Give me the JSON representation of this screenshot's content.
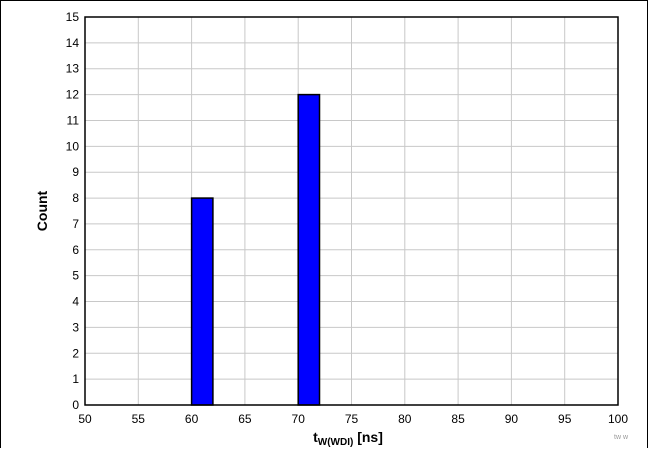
{
  "chart_data": {
    "type": "bar",
    "xlabel_main": "t",
    "xlabel_sub": "W(WDI)",
    "xlabel_unit": " [ns]",
    "ylabel": "Count",
    "xlim": [
      50,
      100
    ],
    "ylim": [
      0,
      15
    ],
    "x_ticks": [
      "50",
      "55",
      "60",
      "65",
      "70",
      "75",
      "80",
      "85",
      "90",
      "95",
      "100"
    ],
    "y_ticks": [
      "0",
      "1",
      "2",
      "3",
      "4",
      "5",
      "6",
      "7",
      "8",
      "9",
      "10",
      "11",
      "12",
      "13",
      "14",
      "15"
    ],
    "bars": [
      {
        "x_start": 60,
        "x_end": 62,
        "value": 8
      },
      {
        "x_start": 70,
        "x_end": 72,
        "value": 12
      }
    ],
    "grid": true,
    "bar_color": "#0000ff",
    "watermark": "tw  w"
  }
}
